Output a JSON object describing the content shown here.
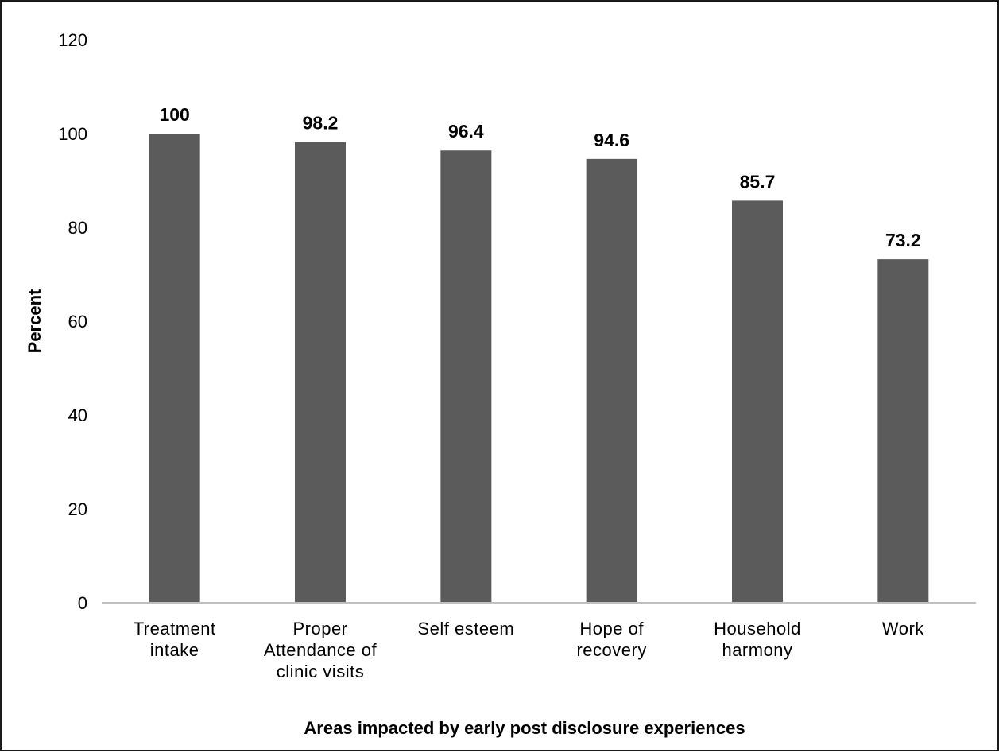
{
  "chart_data": {
    "type": "bar",
    "title": "",
    "xlabel": "Areas impacted by early post disclosure experiences",
    "ylabel": "Percent",
    "ylim": [
      0,
      120
    ],
    "yticks": [
      0,
      20,
      40,
      60,
      80,
      100,
      120
    ],
    "grid": false,
    "legend": "none",
    "bar_color": "#5b5b5b",
    "categories": [
      [
        "Treatment",
        "intake"
      ],
      [
        "Proper",
        "Attendance of",
        "clinic visits"
      ],
      [
        "Self esteem"
      ],
      [
        "Hope of",
        "recovery"
      ],
      [
        "Household",
        "harmony"
      ],
      [
        "Work"
      ]
    ],
    "values": [
      100,
      98.2,
      96.4,
      94.6,
      85.7,
      73.2
    ],
    "value_labels": [
      "100",
      "98.2",
      "96.4",
      "94.6",
      "85.7",
      "73.2"
    ]
  }
}
